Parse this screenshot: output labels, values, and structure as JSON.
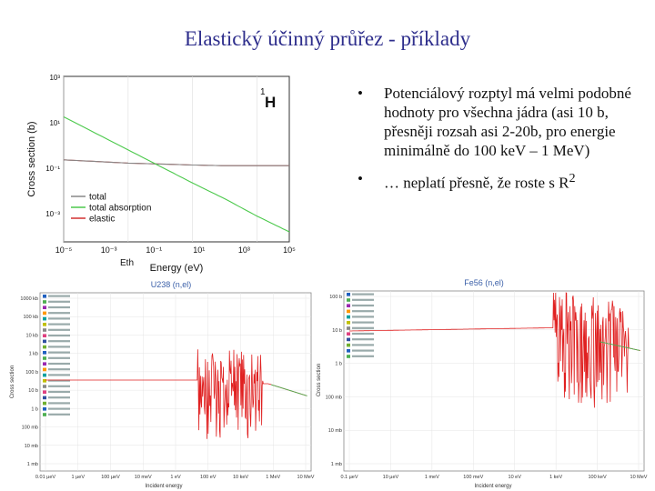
{
  "slide": {
    "title": "Elastický účinný průřez - příklady",
    "bullets": [
      "Potenciálový rozptyl má velmi podobné hodnoty pro všechna jádra (asi 10 b, přesněji rozsah asi 2-20b, pro energie minimálně do 100 keV – 1 MeV)",
      "… neplatí přesně, že roste s R"
    ],
    "bullet2_sup": "2",
    "bullet_char": "•"
  },
  "chart_data": [
    {
      "type": "line",
      "xscale": "log",
      "yscale": "log",
      "xlim": [
        1e-05,
        100
      ],
      "ylim": [
        0.01,
        1000
      ],
      "xlabel": "Energy (eV)",
      "ylabel": "Cross section (b)",
      "xmark": "Eth",
      "xticks": [
        "10⁻⁵",
        "10⁻³",
        "10⁻¹",
        "10¹",
        "10³",
        "10⁵"
      ],
      "yticks": [
        "10³",
        "10¹",
        "10⁻¹",
        "10⁻³"
      ],
      "nuclide_label": "H",
      "nuclide_mass": "1",
      "legend_position": "bottom-left",
      "series": [
        {
          "name": "total",
          "color": "#888888",
          "x": [
            1e-05,
            0.001,
            0.1,
            1,
            10,
            100
          ],
          "y": [
            3,
            2.4,
            2.1,
            2.0,
            2.0,
            2.0
          ]
        },
        {
          "name": "total absorption",
          "color": "#4cc94c",
          "x": [
            1e-05,
            0.001,
            0.01,
            0.1,
            1,
            10,
            100
          ],
          "y": [
            60,
            6,
            1.9,
            0.6,
            0.2,
            0.06,
            0.02
          ]
        },
        {
          "name": "elastic",
          "color": "#d23030",
          "x": [
            1e-05,
            0.001,
            0.1,
            1,
            10,
            100
          ],
          "y": [
            3,
            2.4,
            2.1,
            2.0,
            2.0,
            2.0
          ]
        }
      ]
    },
    {
      "type": "line",
      "title": "U238 (n,el)",
      "xscale": "log",
      "yscale": "log",
      "xlabel": "Incident energy",
      "ylabel": "Cross section",
      "xticks": [
        "0.01 µeV",
        "1 µeV",
        "100 µeV",
        "10 meV",
        "1 eV",
        "100 eV",
        "10 keV",
        "1 MeV",
        "10 MeV"
      ],
      "yticks": [
        "1000 kb",
        "100 kb",
        "10 kb",
        "1 kb",
        "100 b",
        "10 b",
        "1 b",
        "100 mb",
        "10 mb",
        "1 mb"
      ],
      "legend_position": "top-left",
      "series": [
        {
          "name": "U238",
          "color": "#e02020",
          "x": [
            1e-08,
            0.001,
            1,
            3000,
            1000000.0,
            20000000.0
          ],
          "y": [
            9,
            9,
            9,
            9,
            4,
            3
          ]
        }
      ]
    },
    {
      "type": "line",
      "title": "Fe56 (n,el)",
      "xscale": "log",
      "yscale": "log",
      "xlabel": "Incident energy",
      "ylabel": "Cross section",
      "xticks": [
        "0.1 µeV",
        "10 µeV",
        "1 meV",
        "100 meV",
        "10 eV",
        "1 keV",
        "100 keV",
        "10 MeV"
      ],
      "yticks": [
        "100 b",
        "10 b",
        "1 b",
        "100 mb",
        "10 mb",
        "1 mb"
      ],
      "legend_position": "top-left",
      "series": [
        {
          "name": "Fe56",
          "color": "#e02020",
          "x": [
            1e-08,
            0.001,
            1,
            10000.0,
            1000000.0,
            20000000.0
          ],
          "y": [
            20,
            13,
            11,
            10,
            3,
            2
          ]
        }
      ]
    }
  ]
}
